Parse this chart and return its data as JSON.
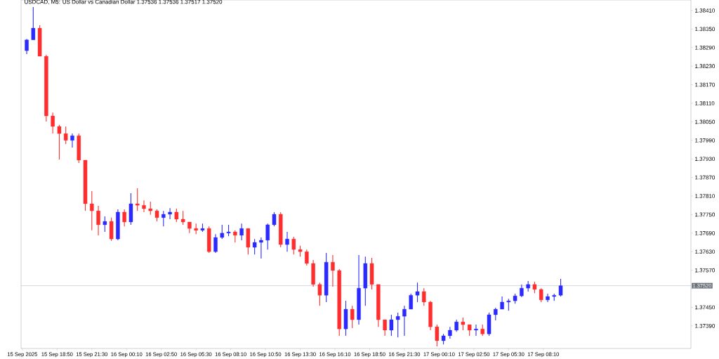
{
  "chart_data": {
    "type": "candlestick",
    "title": "USDCAD, M5:  US Dollar vs Canadian Dollar  1.37536 1.37536 1.37517 1.37520",
    "x": [
      "2025-09-15T16:30",
      "2025-09-15T17:00",
      "2025-09-15T17:30",
      "2025-09-15T18:00",
      "2025-09-15T18:30",
      "2025-09-15T19:00",
      "2025-09-15T19:30",
      "2025-09-15T20:00",
      "2025-09-15T20:30",
      "2025-09-15T21:00",
      "2025-09-15T21:30",
      "2025-09-15T22:00",
      "2025-09-15T22:30",
      "2025-09-15T23:00",
      "2025-09-15T23:30",
      "2025-09-16T00:00",
      "2025-09-16T00:30",
      "2025-09-16T01:00",
      "2025-09-16T01:30",
      "2025-09-16T02:00",
      "2025-09-16T02:30",
      "2025-09-16T03:00",
      "2025-09-16T03:30",
      "2025-09-16T04:00",
      "2025-09-16T04:30",
      "2025-09-16T05:00",
      "2025-09-16T05:30",
      "2025-09-16T06:00",
      "2025-09-16T06:30",
      "2025-09-16T07:00",
      "2025-09-16T07:30",
      "2025-09-16T08:00",
      "2025-09-16T08:30",
      "2025-09-16T09:00",
      "2025-09-16T09:30",
      "2025-09-16T10:00",
      "2025-09-16T10:30",
      "2025-09-16T11:00",
      "2025-09-16T11:30",
      "2025-09-16T12:00",
      "2025-09-16T12:30",
      "2025-09-16T13:00",
      "2025-09-16T13:30",
      "2025-09-16T14:00",
      "2025-09-16T14:30",
      "2025-09-16T15:00",
      "2025-09-16T15:30",
      "2025-09-16T16:00",
      "2025-09-16T16:30",
      "2025-09-16T17:00",
      "2025-09-16T17:30",
      "2025-09-16T18:00",
      "2025-09-16T18:30",
      "2025-09-16T19:00",
      "2025-09-16T19:30",
      "2025-09-16T20:00",
      "2025-09-16T20:30",
      "2025-09-16T21:00",
      "2025-09-16T21:30",
      "2025-09-16T22:00",
      "2025-09-16T22:30",
      "2025-09-16T23:00",
      "2025-09-16T23:30",
      "2025-09-17T00:00",
      "2025-09-17T00:30",
      "2025-09-17T01:00",
      "2025-09-17T01:30",
      "2025-09-17T02:00",
      "2025-09-17T02:30",
      "2025-09-17T03:00",
      "2025-09-17T03:30",
      "2025-09-17T04:00",
      "2025-09-17T04:30",
      "2025-09-17T05:00",
      "2025-09-17T05:30",
      "2025-09-17T06:00",
      "2025-09-17T06:30",
      "2025-09-17T07:00",
      "2025-09-17T07:30",
      "2025-09-17T08:00",
      "2025-09-17T08:30",
      "2025-09-17T09:00",
      "2025-09-17T09:30"
    ],
    "ohlc": [
      [
        1.3828,
        1.38318,
        1.38269,
        1.38315
      ],
      [
        1.38315,
        1.38421,
        1.38315,
        1.38353
      ],
      [
        1.38353,
        1.38362,
        1.38262,
        1.38262
      ],
      [
        1.38262,
        1.38267,
        1.38051,
        1.38069
      ],
      [
        1.38069,
        1.3808,
        1.38012,
        1.38035
      ],
      [
        1.38035,
        1.3804,
        1.37928,
        1.38012
      ],
      [
        1.38012,
        1.38035,
        1.37978,
        1.3799
      ],
      [
        1.3799,
        1.38012,
        1.37967,
        1.38005
      ],
      [
        1.38005,
        1.38012,
        1.37917,
        1.37926
      ],
      [
        1.37926,
        1.37926,
        1.37762,
        1.37785
      ],
      [
        1.37785,
        1.37826,
        1.37699,
        1.37762
      ],
      [
        1.37762,
        1.37778,
        1.37683,
        1.37717
      ],
      [
        1.37717,
        1.37744,
        1.37694,
        1.37728
      ],
      [
        1.37728,
        1.3774,
        1.37665,
        1.37671
      ],
      [
        1.37671,
        1.37767,
        1.37667,
        1.37758
      ],
      [
        1.37758,
        1.37767,
        1.37712,
        1.37726
      ],
      [
        1.37726,
        1.37819,
        1.37717,
        1.37785
      ],
      [
        1.37785,
        1.37835,
        1.37762,
        1.3778
      ],
      [
        1.3778,
        1.37796,
        1.37758,
        1.37769
      ],
      [
        1.37769,
        1.37792,
        1.37749,
        1.37762
      ],
      [
        1.37762,
        1.37767,
        1.37728,
        1.3774
      ],
      [
        1.3774,
        1.37762,
        1.37712,
        1.37751
      ],
      [
        1.37751,
        1.37771,
        1.37735,
        1.37758
      ],
      [
        1.37758,
        1.37769,
        1.37726,
        1.37735
      ],
      [
        1.37735,
        1.37762,
        1.37717,
        1.37726
      ],
      [
        1.37726,
        1.37726,
        1.3769,
        1.37705
      ],
      [
        1.37705,
        1.37721,
        1.37687,
        1.37699
      ],
      [
        1.37699,
        1.37721,
        1.37694,
        1.37705
      ],
      [
        1.37705,
        1.37712,
        1.37626,
        1.3763
      ],
      [
        1.3763,
        1.37687,
        1.37626,
        1.37676
      ],
      [
        1.37676,
        1.37717,
        1.37671,
        1.3769
      ],
      [
        1.3769,
        1.37717,
        1.3768,
        1.37694
      ],
      [
        1.37694,
        1.37699,
        1.3766,
        1.37683
      ],
      [
        1.37683,
        1.37721,
        1.37667,
        1.37705
      ],
      [
        1.37705,
        1.37705,
        1.37621,
        1.37644
      ],
      [
        1.37644,
        1.37671,
        1.37621,
        1.3766
      ],
      [
        1.3766,
        1.37676,
        1.37608,
        1.37667
      ],
      [
        1.37667,
        1.37721,
        1.37637,
        1.37717
      ],
      [
        1.37717,
        1.37758,
        1.37712,
        1.37751
      ],
      [
        1.37751,
        1.37758,
        1.37644,
        1.37653
      ],
      [
        1.37653,
        1.37694,
        1.3763,
        1.37671
      ],
      [
        1.37671,
        1.37678,
        1.37621,
        1.37637
      ],
      [
        1.37637,
        1.37649,
        1.37614,
        1.3763
      ],
      [
        1.3763,
        1.37637,
        1.37585,
        1.37592
      ],
      [
        1.37592,
        1.37603,
        1.37517,
        1.37524
      ],
      [
        1.37524,
        1.3753,
        1.37455,
        1.37489
      ],
      [
        1.37489,
        1.37626,
        1.37467,
        1.37596
      ],
      [
        1.37596,
        1.37619,
        1.37517,
        1.37569
      ],
      [
        1.37569,
        1.37574,
        1.37358,
        1.3738
      ],
      [
        1.3738,
        1.37471,
        1.37358,
        1.37444
      ],
      [
        1.37444,
        1.37455,
        1.37383,
        1.3741
      ],
      [
        1.3741,
        1.37619,
        1.37394,
        1.37512
      ],
      [
        1.37512,
        1.37614,
        1.37455,
        1.37592
      ],
      [
        1.37592,
        1.3761,
        1.37508,
        1.37524
      ],
      [
        1.37524,
        1.37524,
        1.37387,
        1.3741
      ],
      [
        1.3741,
        1.3741,
        1.37358,
        1.37376
      ],
      [
        1.37376,
        1.37426,
        1.37358,
        1.3741
      ],
      [
        1.3741,
        1.37433,
        1.37353,
        1.37421
      ],
      [
        1.37421,
        1.37455,
        1.37358,
        1.37444
      ],
      [
        1.37444,
        1.37494,
        1.37444,
        1.37489
      ],
      [
        1.37489,
        1.3753,
        1.37467,
        1.37501
      ],
      [
        1.37501,
        1.37512,
        1.37455,
        1.37467
      ],
      [
        1.37467,
        1.37471,
        1.37376,
        1.37387
      ],
      [
        1.37387,
        1.37394,
        1.37324,
        1.37342
      ],
      [
        1.37342,
        1.37364,
        1.3733,
        1.37358
      ],
      [
        1.37358,
        1.37387,
        1.37349,
        1.37376
      ],
      [
        1.37376,
        1.3741,
        1.37371,
        1.37403
      ],
      [
        1.37403,
        1.37417,
        1.37376,
        1.37394
      ],
      [
        1.37394,
        1.37394,
        1.37358,
        1.37376
      ],
      [
        1.37376,
        1.37394,
        1.37358,
        1.3738
      ],
      [
        1.3738,
        1.37394,
        1.37358,
        1.37364
      ],
      [
        1.37364,
        1.37433,
        1.37358,
        1.37426
      ],
      [
        1.37426,
        1.37449,
        1.37408,
        1.37444
      ],
      [
        1.37444,
        1.37485,
        1.37444,
        1.37467
      ],
      [
        1.37467,
        1.37478,
        1.37439,
        1.37471
      ],
      [
        1.37471,
        1.37494,
        1.37462,
        1.37487
      ],
      [
        1.37487,
        1.37524,
        1.37483,
        1.37512
      ],
      [
        1.37512,
        1.37535,
        1.37501,
        1.37524
      ],
      [
        1.37524,
        1.37533,
        1.37496,
        1.37508
      ],
      [
        1.37508,
        1.37512,
        1.37467,
        1.37474
      ],
      [
        1.37474,
        1.37494,
        1.37467,
        1.37485
      ],
      [
        1.37485,
        1.37494,
        1.37471,
        1.37489
      ],
      [
        1.37489,
        1.37542,
        1.37485,
        1.3752
      ]
    ],
    "xlim": [
      "2025-09-15T16:04",
      "2025-09-17T19:30"
    ],
    "xticks": [
      {
        "value": "2025-09-15T16:10",
        "label": "15 Sep 2025"
      },
      {
        "value": "2025-09-15T18:50",
        "label": "15 Sep 18:50"
      },
      {
        "value": "2025-09-15T21:30",
        "label": "15 Sep 21:30"
      },
      {
        "value": "2025-09-16T00:10",
        "label": "16 Sep 00:10"
      },
      {
        "value": "2025-09-16T02:50",
        "label": "16 Sep 02:50"
      },
      {
        "value": "2025-09-16T05:30",
        "label": "16 Sep 05:30"
      },
      {
        "value": "2025-09-16T08:10",
        "label": "16 Sep 08:10"
      },
      {
        "value": "2025-09-16T10:50",
        "label": "16 Sep 10:50"
      },
      {
        "value": "2025-09-16T13:30",
        "label": "16 Sep 13:30"
      },
      {
        "value": "2025-09-16T16:10",
        "label": "16 Sep 16:10"
      },
      {
        "value": "2025-09-16T18:50",
        "label": "16 Sep 18:50"
      },
      {
        "value": "2025-09-16T21:30",
        "label": "16 Sep 21:30"
      },
      {
        "value": "2025-09-17T00:10",
        "label": "17 Sep 00:10"
      },
      {
        "value": "2025-09-17T02:50",
        "label": "17 Sep 02:50"
      },
      {
        "value": "2025-09-17T05:30",
        "label": "17 Sep 05:30"
      },
      {
        "value": "2025-09-17T08:10",
        "label": "17 Sep 08:10"
      }
    ],
    "ylim": [
      1.37317,
      1.38444
    ],
    "yticks": [
      {
        "value": 1.3841,
        "label": "1.38410"
      },
      {
        "value": 1.3835,
        "label": "1.38350"
      },
      {
        "value": 1.3829,
        "label": "1.38290"
      },
      {
        "value": 1.3823,
        "label": "1.38230"
      },
      {
        "value": 1.3817,
        "label": "1.38170"
      },
      {
        "value": 1.3811,
        "label": "1.38110"
      },
      {
        "value": 1.3805,
        "label": "1.38050"
      },
      {
        "value": 1.3799,
        "label": "1.37990"
      },
      {
        "value": 1.3793,
        "label": "1.37930"
      },
      {
        "value": 1.3787,
        "label": "1.37870"
      },
      {
        "value": 1.3781,
        "label": "1.37810"
      },
      {
        "value": 1.3775,
        "label": "1.37750"
      },
      {
        "value": 1.3769,
        "label": "1.37690"
      },
      {
        "value": 1.3763,
        "label": "1.37630"
      },
      {
        "value": 1.3757,
        "label": "1.37570"
      },
      {
        "value": 1.3751,
        "label": null
      },
      {
        "value": 1.3745,
        "label": "1.37450"
      },
      {
        "value": 1.3739,
        "label": "1.37390"
      }
    ],
    "ref_lines": [
      {
        "axis": "y",
        "value": 1.3752,
        "label": "1.37520",
        "color": "#b4bccb"
      }
    ]
  }
}
